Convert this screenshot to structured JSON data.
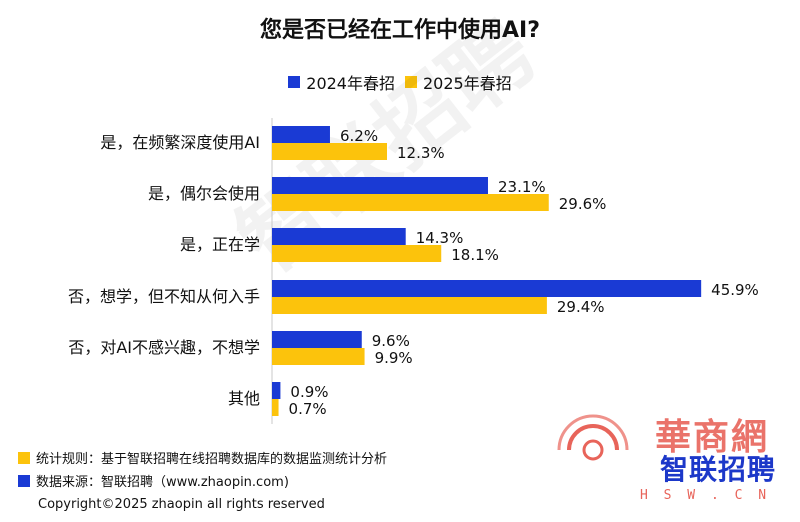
{
  "title": "您是否已经在工作中使用AI?",
  "colors": {
    "series_2024": "#1a3ad4",
    "series_2025": "#fcc30c"
  },
  "legend": {
    "s2024": "2024年春招",
    "s2025": "2025年春招"
  },
  "watermark": "智联招聘",
  "notes": {
    "rule": "统计规则：基于智联招聘在线招聘数据库的数据监测统计分析",
    "source": "数据来源：智联招聘（www.zhaopin.com)"
  },
  "copyright": "Copyright©2025 zhaopin all rights reserved",
  "logos": {
    "zhaopin": "智联招聘",
    "hsw": "華商網",
    "hsw_url": "H S W . C N"
  },
  "chart_data": {
    "type": "bar",
    "orientation": "horizontal",
    "title": "您是否已经在工作中使用AI?",
    "categories": [
      "是，在频繁深度使用AI",
      "是，偶尔会使用",
      "是，正在学",
      "否，想学，但不知从何入手",
      "否，对AI不感兴趣，不想学",
      "其他"
    ],
    "series": [
      {
        "name": "2024年春招",
        "values": [
          6.2,
          23.1,
          14.3,
          45.9,
          9.6,
          0.9
        ],
        "labels": [
          "6.2%",
          "23.1%",
          "14.3%",
          "45.9%",
          "9.6%",
          "0.9%"
        ]
      },
      {
        "name": "2025年春招",
        "values": [
          12.3,
          29.6,
          18.1,
          29.4,
          9.9,
          0.7
        ],
        "labels": [
          "12.3%",
          "29.6%",
          "18.1%",
          "29.4%",
          "9.9%",
          "0.7%"
        ]
      }
    ],
    "unit": "%",
    "xlim": [
      0,
      50
    ],
    "grid": false,
    "legend_position": "top-center"
  }
}
